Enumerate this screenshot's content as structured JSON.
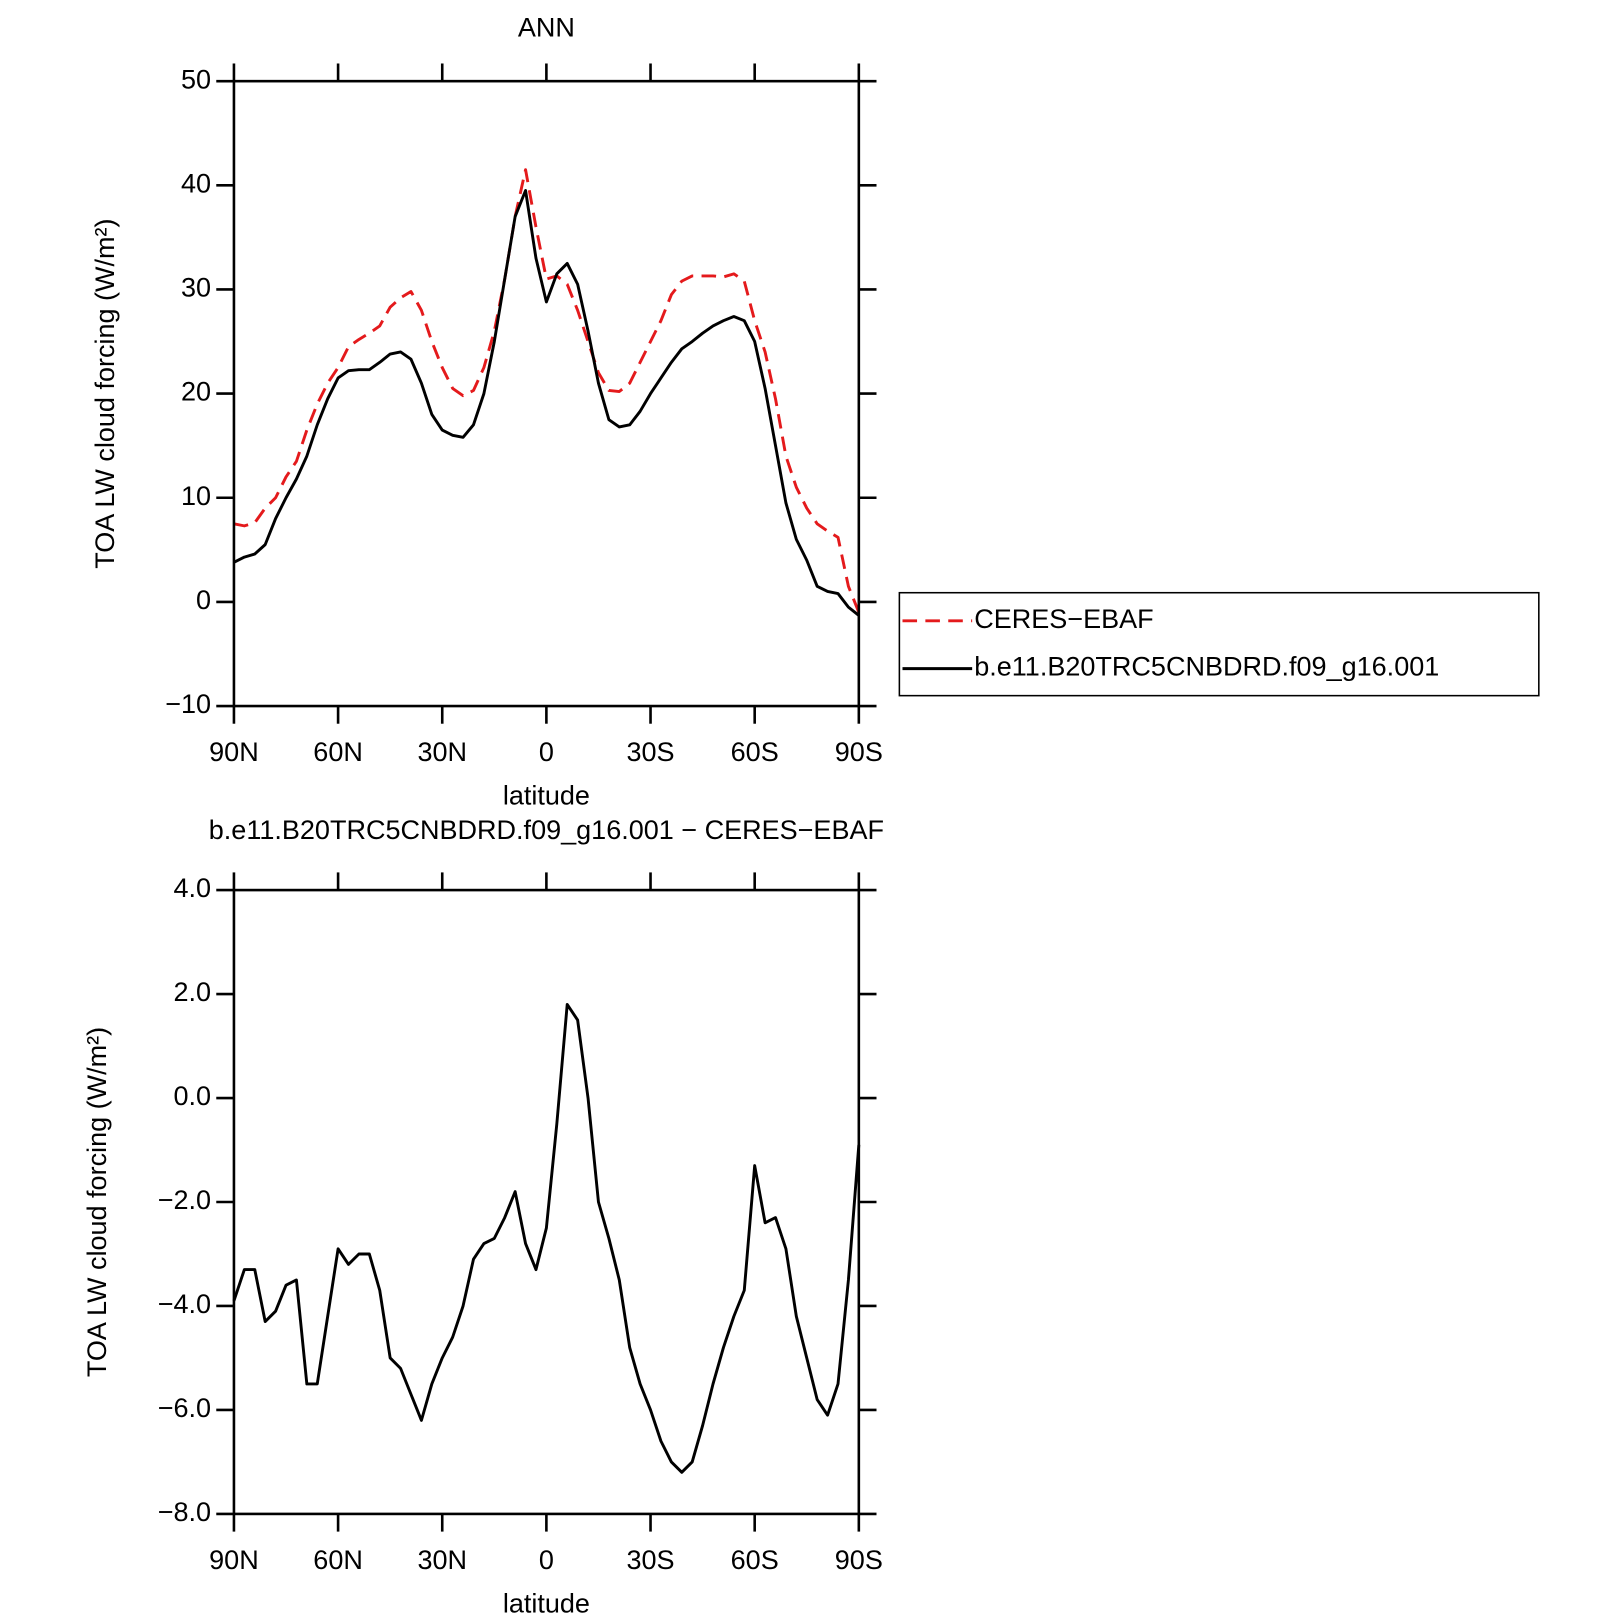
{
  "chart_data": [
    {
      "type": "line",
      "title": "ANN",
      "xlabel": "latitude",
      "ylabel": "TOA LW cloud forcing (W/m²)",
      "x": [
        90,
        87,
        84,
        81,
        78,
        75,
        72,
        69,
        66,
        63,
        60,
        57,
        54,
        51,
        48,
        45,
        42,
        39,
        36,
        33,
        30,
        27,
        24,
        21,
        18,
        15,
        12,
        9,
        6,
        3,
        0,
        -3,
        -6,
        -9,
        -12,
        -15,
        -18,
        -21,
        -24,
        -27,
        -30,
        -33,
        -36,
        -39,
        -42,
        -45,
        -48,
        -51,
        -54,
        -57,
        -60,
        -63,
        -66,
        -69,
        -72,
        -75,
        -78,
        -81,
        -84,
        -87,
        -90
      ],
      "xlim": [
        90,
        -90
      ],
      "xticks": [
        {
          "value": 90,
          "label": "90N"
        },
        {
          "value": 60,
          "label": "60N"
        },
        {
          "value": 30,
          "label": "30N"
        },
        0,
        {
          "value": -30,
          "label": "30S"
        },
        {
          "value": -60,
          "label": "60S"
        },
        {
          "value": -90,
          "label": "90S"
        }
      ],
      "ylim": [
        -10,
        50
      ],
      "yticks": [
        {
          "value": -10,
          "label": "−10"
        },
        0,
        10,
        20,
        30,
        40,
        50
      ],
      "legend": "right",
      "series": [
        {
          "name": "CERES−EBAF",
          "color": "#e41a1c",
          "dash": true,
          "values": [
            7.5,
            7.3,
            7.6,
            9,
            10,
            12,
            13.5,
            16.5,
            19,
            21,
            22.5,
            24.5,
            25.2,
            25.8,
            26.5,
            28.3,
            29.2,
            29.8,
            28,
            25,
            22.5,
            20.5,
            19.8,
            20.3,
            22.5,
            26,
            31,
            37,
            41.5,
            36,
            31,
            31.3,
            30.5,
            28,
            25,
            22,
            20.3,
            20.2,
            21,
            23,
            25,
            27,
            29.5,
            30.8,
            31.3,
            31.3,
            31.3,
            31.2,
            31.5,
            30.8,
            27,
            24,
            19.5,
            14,
            11,
            9,
            7.5,
            6.8,
            6.2,
            1.5,
            -1
          ]
        },
        {
          "name": "b.e11.B20TRC5CNBDRD.f09_g16.001",
          "color": "#000000",
          "dash": false,
          "values": [
            3.8,
            4.3,
            4.6,
            5.5,
            8,
            10,
            11.8,
            14,
            17,
            19.5,
            21.5,
            22.2,
            22.3,
            22.3,
            23,
            23.8,
            24,
            23.3,
            21,
            18,
            16.5,
            16,
            15.8,
            17,
            20,
            25,
            31,
            37,
            39.5,
            33,
            28.8,
            31.5,
            32.5,
            30.5,
            26,
            21,
            17.5,
            16.8,
            17,
            18.3,
            20,
            21.5,
            23,
            24.3,
            25,
            25.8,
            26.5,
            27,
            27.4,
            27,
            25,
            20.5,
            15,
            9.5,
            6,
            4,
            1.5,
            1,
            0.8,
            -0.5,
            -1.3
          ]
        }
      ]
    },
    {
      "type": "line",
      "title": "b.e11.B20TRC5CNBDRD.f09_g16.001 − CERES−EBAF",
      "xlabel": "latitude",
      "ylabel": "TOA LW cloud forcing (W/m²)",
      "x": [
        90,
        87,
        84,
        81,
        78,
        75,
        72,
        69,
        66,
        63,
        60,
        57,
        54,
        51,
        48,
        45,
        42,
        39,
        36,
        33,
        30,
        27,
        24,
        21,
        18,
        15,
        12,
        9,
        6,
        3,
        0,
        -3,
        -6,
        -9,
        -12,
        -15,
        -18,
        -21,
        -24,
        -27,
        -30,
        -33,
        -36,
        -39,
        -42,
        -45,
        -48,
        -51,
        -54,
        -57,
        -60,
        -63,
        -66,
        -69,
        -72,
        -75,
        -78,
        -81,
        -84,
        -87,
        -90
      ],
      "xlim": [
        90,
        -90
      ],
      "xticks": [
        {
          "value": 90,
          "label": "90N"
        },
        {
          "value": 60,
          "label": "60N"
        },
        {
          "value": 30,
          "label": "30N"
        },
        0,
        {
          "value": -30,
          "label": "30S"
        },
        {
          "value": -60,
          "label": "60S"
        },
        {
          "value": -90,
          "label": "90S"
        }
      ],
      "ylim": [
        -8,
        4
      ],
      "yticks": [
        {
          "value": -8,
          "label": "−8.0"
        },
        {
          "value": -6,
          "label": "−6.0"
        },
        {
          "value": -4,
          "label": "−4.0"
        },
        {
          "value": -2,
          "label": "−2.0"
        },
        {
          "value": 0,
          "label": "0.0"
        },
        {
          "value": 2,
          "label": "2.0"
        },
        {
          "value": 4,
          "label": "4.0"
        }
      ],
      "color": "#000000",
      "values": [
        -3.9,
        -3.3,
        -3.3,
        -4.3,
        -4.1,
        -3.6,
        -3.5,
        -5.5,
        -5.5,
        -4.2,
        -2.9,
        -3.2,
        -3,
        -3,
        -3.7,
        -5,
        -5.2,
        -5.7,
        -6.2,
        -5.5,
        -5,
        -4.6,
        -4,
        -3.1,
        -2.8,
        -2.7,
        -2.3,
        -1.8,
        -2.8,
        -3.3,
        -2.5,
        -0.5,
        1.8,
        1.5,
        0,
        -2,
        -2.7,
        -3.5,
        -4.8,
        -5.5,
        -6,
        -6.6,
        -7,
        -7.2,
        -7,
        -6.3,
        -5.5,
        -4.8,
        -4.2,
        -3.7,
        -1.3,
        -2.4,
        -2.3,
        -2.9,
        -4.2,
        -5,
        -5.8,
        -6.1,
        -5.5,
        -3.5,
        -0.9
      ]
    }
  ]
}
